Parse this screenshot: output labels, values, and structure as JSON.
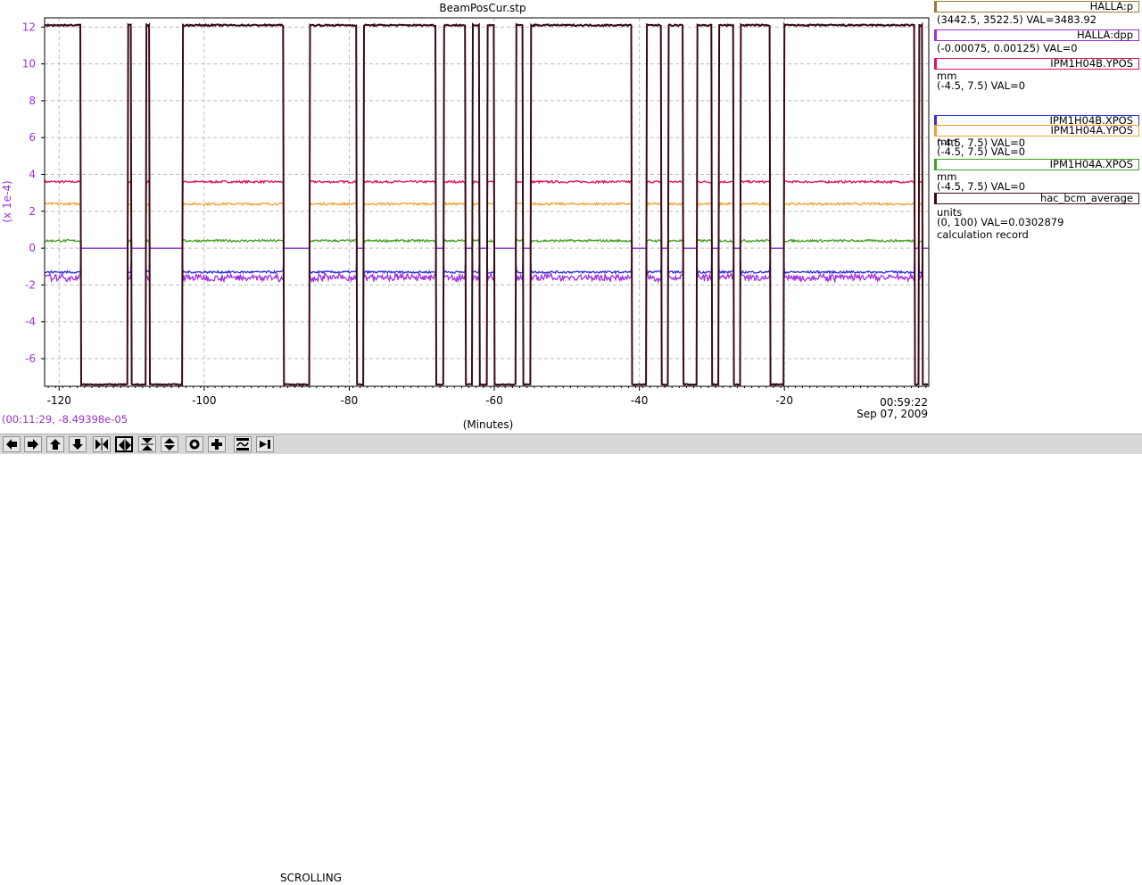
{
  "title": "BeamPosCur.stp",
  "cursor_readout": "(00:11:29, -8.49398e-05",
  "chart_data": {
    "type": "line",
    "title": "BeamPosCur.stp",
    "xlabel": "(Minutes)",
    "ylabel": "(x 1e-4)",
    "xlim": [
      -122,
      -0.1
    ],
    "ylim": [
      -7.5,
      12.5
    ],
    "x_ticks": [
      -120,
      -100,
      -80,
      -60,
      -40,
      -20
    ],
    "y_ticks": [
      -6,
      -4,
      -2,
      0,
      2,
      4,
      6,
      8,
      10,
      12
    ],
    "end_time": "00:59:22",
    "end_date": "Sep 07, 2009",
    "grid": true,
    "beam_off_intervals": [
      [
        -117,
        -110.5
      ],
      [
        -110,
        -108
      ],
      [
        -107.5,
        -103
      ],
      [
        -89,
        -85.5
      ],
      [
        -79,
        -78
      ],
      [
        -68,
        -67
      ],
      [
        -64,
        -63
      ],
      [
        -62,
        -61
      ],
      [
        -60,
        -57
      ],
      [
        -56,
        -55
      ],
      [
        -41,
        -39
      ],
      [
        -37,
        -36
      ],
      [
        -34,
        -32
      ],
      [
        -30,
        -29
      ],
      [
        -27,
        -26
      ],
      [
        -22,
        -20
      ],
      [
        -2,
        -1.5
      ],
      [
        -1,
        -0.1
      ]
    ],
    "series": [
      {
        "name": "HALLA:p",
        "color": "#9a7a30",
        "range": "(3442.5, 3522.5)",
        "value": "VAL=3483.92"
      },
      {
        "name": "HALLA:dpp",
        "color": "#a030e0",
        "range": "(-0.00075, 0.00125)",
        "value": "VAL=0",
        "on_level": -1.6,
        "off_level": 0
      },
      {
        "name": "IPM1H04B.YPOS",
        "color": "#e0105c",
        "units": "mm",
        "range": "(-4.5, 7.5)",
        "value": "VAL=0",
        "on_level": 3.6,
        "off_level": 0
      },
      {
        "name": "IPM1H04B.XPOS",
        "color": "#3030e0",
        "units": "mm",
        "range": "(-4.5, 7.5)",
        "value": "VAL=0",
        "on_level": -1.3,
        "off_level": 0
      },
      {
        "name": "IPM1H04A.YPOS",
        "color": "#f0a030",
        "units": "mm",
        "range": "(-4.5, 7.5)",
        "value": "VAL=0",
        "on_level": 2.4,
        "off_level": 0
      },
      {
        "name": "IPM1H04A.XPOS",
        "color": "#40a020",
        "units": "mm",
        "range": "(-4.5, 7.5)",
        "value": "VAL=0",
        "on_level": 0.4,
        "off_level": 0
      },
      {
        "name": "hac_bcm_average",
        "color": "#3a0a14",
        "units": "units",
        "range": "(0, 100)",
        "value": "VAL=0.0302879",
        "note": "calculation record",
        "on_level": 12.1,
        "off_level": -7.4
      }
    ]
  },
  "legend": {
    "items": [
      {
        "name": "HALLA:p",
        "line1": "(3442.5, 3522.5) VAL=3483.92"
      },
      {
        "name": "HALLA:dpp",
        "line1": "(-0.00075, 0.00125) VAL=0"
      },
      {
        "name": "IPM1H04B.YPOS",
        "line1": "mm",
        "line2": "(-4.5, 7.5) VAL=0"
      },
      {
        "name": "IPM1H04B.XPOS",
        "line1": "mm",
        "line2": "(-4.5, 7.5) VAL=0"
      },
      {
        "name": "IPM1H04A.YPOS",
        "line1": "mm",
        "line2": "(-4.5, 7.5) VAL=0"
      },
      {
        "name": "IPM1H04A.XPOS",
        "line1": "mm",
        "line2": "(-4.5, 7.5) VAL=0"
      },
      {
        "name": "hac_bcm_average",
        "line1": "units",
        "line2": "(0, 100) VAL=0.0302879",
        "line3": "calculation record"
      }
    ]
  },
  "toolbar": {
    "status": "SCROLLING",
    "buttons": [
      "pan-left-icon",
      "pan-right-icon",
      "pan-up-icon",
      "pan-down-icon",
      "zoom-in-x-icon",
      "zoom-out-x-icon",
      "zoom-in-y-icon",
      "zoom-out-y-icon",
      "record-icon",
      "add-icon",
      "auto-scale-icon",
      "step-icon"
    ]
  }
}
